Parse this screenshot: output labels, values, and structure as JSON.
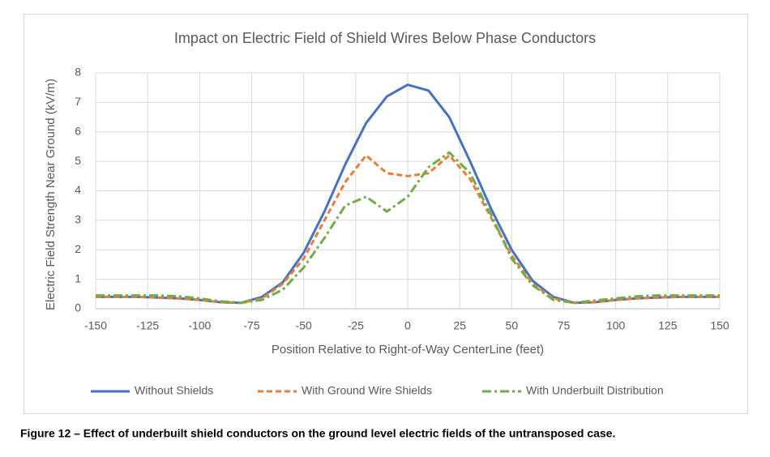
{
  "chart_data": {
    "type": "line",
    "title": "Impact on Electric Field of Shield Wires Below Phase Conductors",
    "x_label": "Position Relative to Right-of-Way CenterLine (feet)",
    "y_label": "Electric Field Strength Near Ground (kV/m)",
    "x": [
      -150,
      -140,
      -130,
      -120,
      -110,
      -100,
      -90,
      -80,
      -70,
      -60,
      -50,
      -40,
      -30,
      -20,
      -10,
      0,
      10,
      20,
      30,
      40,
      50,
      60,
      70,
      80,
      90,
      100,
      110,
      120,
      130,
      140,
      150
    ],
    "series": [
      {
        "name": "Without Shields",
        "color": "#4472c4",
        "dash": "solid",
        "values": [
          0.4,
          0.4,
          0.4,
          0.38,
          0.35,
          0.3,
          0.22,
          0.2,
          0.4,
          0.9,
          1.9,
          3.3,
          4.9,
          6.3,
          7.2,
          7.6,
          7.4,
          6.5,
          5.0,
          3.4,
          2.0,
          0.95,
          0.4,
          0.2,
          0.22,
          0.3,
          0.35,
          0.38,
          0.4,
          0.4,
          0.4
        ]
      },
      {
        "name": "With Ground Wire Shields",
        "color": "#ed7d31",
        "dash": "dash",
        "values": [
          0.4,
          0.4,
          0.4,
          0.38,
          0.35,
          0.3,
          0.22,
          0.2,
          0.35,
          0.85,
          1.7,
          3.0,
          4.3,
          5.2,
          4.6,
          4.5,
          4.6,
          5.2,
          4.4,
          3.1,
          1.8,
          0.85,
          0.35,
          0.2,
          0.22,
          0.3,
          0.35,
          0.38,
          0.4,
          0.4,
          0.4
        ]
      },
      {
        "name": "With Underbuilt Distribution",
        "color": "#70ad47",
        "dash": "dashdot",
        "values": [
          0.45,
          0.45,
          0.45,
          0.45,
          0.42,
          0.35,
          0.25,
          0.2,
          0.3,
          0.65,
          1.4,
          2.4,
          3.5,
          3.8,
          3.3,
          3.8,
          4.8,
          5.3,
          4.6,
          3.2,
          1.7,
          0.8,
          0.3,
          0.2,
          0.28,
          0.35,
          0.42,
          0.45,
          0.45,
          0.45,
          0.45
        ]
      }
    ],
    "xlim": [
      -150,
      150
    ],
    "xticks": [
      -150,
      -125,
      -100,
      -75,
      -50,
      -25,
      0,
      25,
      50,
      75,
      100,
      125,
      150
    ],
    "ylim": [
      0,
      8
    ],
    "yticks": [
      0,
      1,
      2,
      3,
      4,
      5,
      6,
      7,
      8
    ],
    "grid": true,
    "legend": "bottom"
  },
  "caption": "Figure 12 – Effect of underbuilt shield conductors on the ground level electric fields of the untransposed case."
}
